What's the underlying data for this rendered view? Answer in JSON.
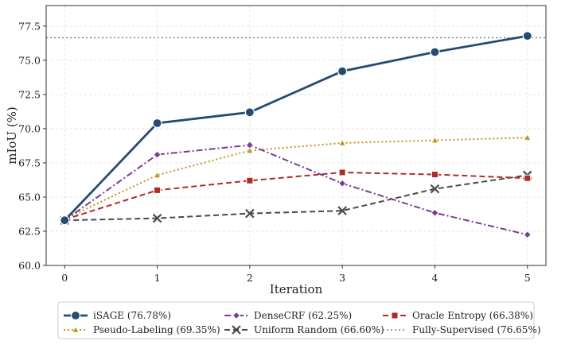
{
  "chart_data": {
    "type": "line",
    "title": "",
    "xlabel": "Iteration",
    "ylabel": "mIoU (%)",
    "x": [
      0,
      1,
      2,
      3,
      4,
      5
    ],
    "xlim": [
      -0.2,
      5.2
    ],
    "ylim": [
      60.0,
      79.0
    ],
    "xticks": [
      "0",
      "1",
      "2",
      "3",
      "4",
      "5"
    ],
    "yticks": [
      "60.0",
      "62.5",
      "65.0",
      "67.5",
      "70.0",
      "72.5",
      "75.0",
      "77.5"
    ],
    "grid": true,
    "legend_position": "bottom-center",
    "series": [
      {
        "name": "iSAGE  (76.78%)",
        "values": [
          63.3,
          70.4,
          71.2,
          74.2,
          75.6,
          76.78
        ],
        "color": "#254b73",
        "line": "solid",
        "marker": "circle"
      },
      {
        "name": "Pseudo-Labeling  (69.35%)",
        "values": [
          63.4,
          66.6,
          68.4,
          68.95,
          69.15,
          69.35
        ],
        "color": "#c1911b",
        "line": "dotted",
        "marker": "triangle"
      },
      {
        "name": "DenseCRF  (62.25%)",
        "values": [
          63.3,
          68.1,
          68.8,
          66.0,
          63.85,
          62.25
        ],
        "color": "#7b3b98",
        "line": "dashdot",
        "marker": "diamond"
      },
      {
        "name": "Uniform Random  (66.60%)",
        "values": [
          63.3,
          63.45,
          63.8,
          64.0,
          65.6,
          66.6
        ],
        "color": "#4a4a4a",
        "line": "dashed",
        "marker": "x"
      },
      {
        "name": "Oracle Entropy  (66.38%)",
        "values": [
          63.35,
          65.5,
          66.2,
          66.8,
          66.65,
          66.38
        ],
        "color": "#b02a2a",
        "line": "dashed",
        "marker": "square"
      }
    ],
    "reference_lines": [
      {
        "name": "Fully-Supervised  (76.65%)",
        "value": 76.65,
        "color": "#7a7a7a",
        "line": "dotted"
      }
    ]
  }
}
